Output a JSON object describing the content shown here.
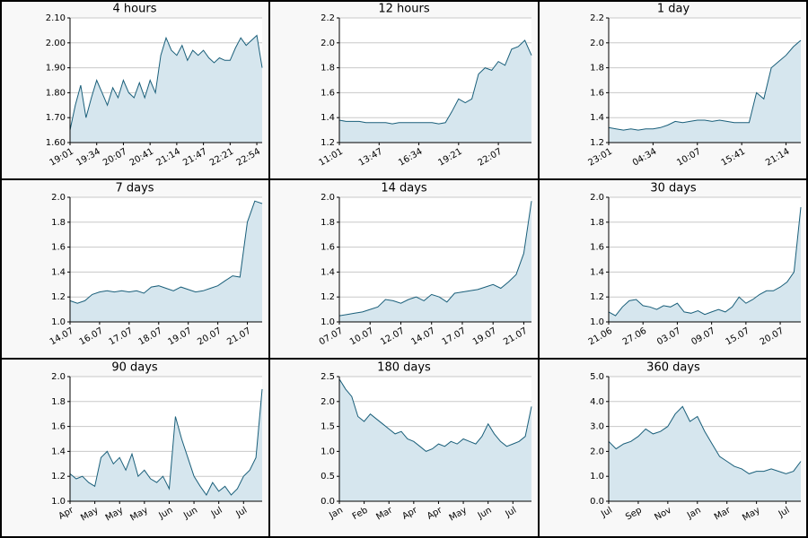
{
  "chart_data": [
    {
      "type": "line",
      "title": "4 hours",
      "color": "#1a5f7a",
      "fill": "#d6e6ee",
      "grid": true,
      "ylim": [
        1.6,
        2.1
      ],
      "yticks": [
        {
          "value": 1.6,
          "label": "1.60"
        },
        {
          "value": 1.7,
          "label": "1.70"
        },
        {
          "value": 1.8,
          "label": "1.80"
        },
        {
          "value": 1.9,
          "label": "1.90"
        },
        {
          "value": 2.0,
          "label": "2.00"
        },
        {
          "value": 2.1,
          "label": "2.10"
        }
      ],
      "categories": [
        "19:01",
        null,
        null,
        null,
        null,
        "19:34",
        null,
        null,
        null,
        null,
        "20:07",
        null,
        null,
        null,
        null,
        "20:41",
        null,
        null,
        null,
        null,
        "21:14",
        null,
        null,
        null,
        null,
        "21:47",
        null,
        null,
        null,
        null,
        "22:21",
        null,
        null,
        null,
        null,
        "22:54",
        null
      ],
      "values": [
        1.65,
        1.75,
        1.83,
        1.7,
        1.78,
        1.85,
        1.8,
        1.75,
        1.82,
        1.78,
        1.85,
        1.8,
        1.78,
        1.84,
        1.78,
        1.85,
        1.8,
        1.95,
        2.02,
        1.97,
        1.95,
        1.99,
        1.93,
        1.97,
        1.95,
        1.97,
        1.94,
        1.92,
        1.94,
        1.93,
        1.93,
        1.98,
        2.02,
        1.99,
        2.01,
        2.03,
        1.9
      ]
    },
    {
      "type": "line",
      "title": "12 hours",
      "color": "#1a5f7a",
      "fill": "#d6e6ee",
      "grid": true,
      "ylim": [
        1.2,
        2.2
      ],
      "yticks": [
        1.2,
        1.4,
        1.6,
        1.8,
        {
          "value": 2.0,
          "label": "2.0"
        },
        2.2
      ],
      "categories": [
        "11:01",
        null,
        null,
        null,
        null,
        null,
        "13:47",
        null,
        null,
        null,
        null,
        null,
        "16:34",
        null,
        null,
        null,
        null,
        null,
        "19:21",
        null,
        null,
        null,
        null,
        null,
        "22:07",
        null,
        null,
        null,
        null,
        null
      ],
      "values": [
        1.38,
        1.37,
        1.37,
        1.37,
        1.36,
        1.36,
        1.36,
        1.36,
        1.35,
        1.36,
        1.36,
        1.36,
        1.36,
        1.36,
        1.36,
        1.35,
        1.36,
        1.45,
        1.55,
        1.52,
        1.55,
        1.75,
        1.8,
        1.78,
        1.85,
        1.82,
        1.95,
        1.97,
        2.02,
        1.9
      ]
    },
    {
      "type": "line",
      "title": "1 day",
      "color": "#1a5f7a",
      "fill": "#d6e6ee",
      "grid": true,
      "ylim": [
        1.2,
        2.2
      ],
      "yticks": [
        1.2,
        1.4,
        1.6,
        1.8,
        {
          "value": 2.0,
          "label": "2.0"
        },
        2.2
      ],
      "categories": [
        "23:01",
        null,
        null,
        null,
        null,
        null,
        "04:34",
        null,
        null,
        null,
        null,
        null,
        "10:07",
        null,
        null,
        null,
        null,
        null,
        "15:41",
        null,
        null,
        null,
        null,
        null,
        "21:14",
        null,
        null
      ],
      "values": [
        1.32,
        1.31,
        1.3,
        1.31,
        1.3,
        1.31,
        1.31,
        1.32,
        1.34,
        1.37,
        1.36,
        1.37,
        1.38,
        1.38,
        1.37,
        1.38,
        1.37,
        1.36,
        1.36,
        1.36,
        1.6,
        1.55,
        1.8,
        1.85,
        1.9,
        1.97,
        2.02
      ]
    },
    {
      "type": "line",
      "title": "7 days",
      "color": "#1a5f7a",
      "fill": "#d6e6ee",
      "grid": true,
      "ylim": [
        1.0,
        2.0
      ],
      "yticks": [
        {
          "value": 1.0,
          "label": "1.0"
        },
        1.2,
        1.4,
        1.6,
        1.8,
        {
          "value": 2.0,
          "label": "2.0"
        }
      ],
      "categories": [
        "14.07",
        null,
        null,
        null,
        "16.07",
        null,
        null,
        null,
        "17.07",
        null,
        null,
        null,
        "18.07",
        null,
        null,
        null,
        "19.07",
        null,
        null,
        null,
        "20.07",
        null,
        null,
        null,
        "21.07",
        null,
        null
      ],
      "values": [
        1.17,
        1.15,
        1.17,
        1.22,
        1.24,
        1.25,
        1.24,
        1.25,
        1.24,
        1.25,
        1.23,
        1.28,
        1.29,
        1.27,
        1.25,
        1.28,
        1.26,
        1.24,
        1.25,
        1.27,
        1.29,
        1.33,
        1.37,
        1.36,
        1.8,
        1.97,
        1.95
      ]
    },
    {
      "type": "line",
      "title": "14 days",
      "color": "#1a5f7a",
      "fill": "#d6e6ee",
      "grid": true,
      "ylim": [
        1.0,
        2.0
      ],
      "yticks": [
        {
          "value": 1.0,
          "label": "1.0"
        },
        1.2,
        1.4,
        1.6,
        1.8,
        {
          "value": 2.0,
          "label": "2.0"
        }
      ],
      "categories": [
        "07.07",
        null,
        null,
        null,
        "10.07",
        null,
        null,
        null,
        "12.07",
        null,
        null,
        null,
        "14.07",
        null,
        null,
        null,
        "17.07",
        null,
        null,
        null,
        "19.07",
        null,
        null,
        null,
        "21.07",
        null
      ],
      "values": [
        1.05,
        1.06,
        1.07,
        1.08,
        1.1,
        1.12,
        1.18,
        1.17,
        1.15,
        1.18,
        1.2,
        1.17,
        1.22,
        1.2,
        1.16,
        1.23,
        1.24,
        1.25,
        1.26,
        1.28,
        1.3,
        1.27,
        1.32,
        1.38,
        1.55,
        1.97
      ]
    },
    {
      "type": "line",
      "title": "30 days",
      "color": "#1a5f7a",
      "fill": "#d6e6ee",
      "grid": true,
      "ylim": [
        1.0,
        2.0
      ],
      "yticks": [
        {
          "value": 1.0,
          "label": "1.0"
        },
        1.2,
        1.4,
        1.6,
        1.8,
        {
          "value": 2.0,
          "label": "2.0"
        }
      ],
      "categories": [
        "21.06",
        null,
        null,
        null,
        null,
        "27.06",
        null,
        null,
        null,
        null,
        "03.07",
        null,
        null,
        null,
        null,
        "09.07",
        null,
        null,
        null,
        null,
        "15.07",
        null,
        null,
        null,
        null,
        "20.07",
        null,
        null,
        null
      ],
      "values": [
        1.08,
        1.05,
        1.12,
        1.17,
        1.18,
        1.13,
        1.12,
        1.1,
        1.13,
        1.12,
        1.15,
        1.08,
        1.07,
        1.09,
        1.06,
        1.08,
        1.1,
        1.08,
        1.12,
        1.2,
        1.15,
        1.18,
        1.22,
        1.25,
        1.25,
        1.28,
        1.32,
        1.4,
        1.92
      ]
    },
    {
      "type": "line",
      "title": "90 days",
      "color": "#1a5f7a",
      "fill": "#d6e6ee",
      "grid": true,
      "ylim": [
        1.0,
        2.0
      ],
      "yticks": [
        {
          "value": 1.0,
          "label": "1.0"
        },
        1.2,
        1.4,
        1.6,
        1.8,
        {
          "value": 2.0,
          "label": "2.0"
        }
      ],
      "categories": [
        "Apr",
        null,
        null,
        null,
        "May",
        null,
        null,
        null,
        "May",
        null,
        null,
        null,
        "May",
        null,
        null,
        null,
        "Jun",
        null,
        null,
        null,
        "Jun",
        null,
        null,
        null,
        "Jul",
        null,
        null,
        null,
        "Jul",
        null,
        null,
        null
      ],
      "values": [
        1.22,
        1.18,
        1.2,
        1.15,
        1.12,
        1.35,
        1.4,
        1.3,
        1.35,
        1.25,
        1.38,
        1.2,
        1.25,
        1.18,
        1.15,
        1.2,
        1.1,
        1.68,
        1.5,
        1.35,
        1.2,
        1.12,
        1.05,
        1.15,
        1.08,
        1.12,
        1.05,
        1.1,
        1.2,
        1.25,
        1.35,
        1.9
      ]
    },
    {
      "type": "line",
      "title": "180 days",
      "color": "#1a5f7a",
      "fill": "#d6e6ee",
      "grid": true,
      "ylim": [
        0,
        2.5
      ],
      "yticks": [
        {
          "value": 0,
          "label": "0.0"
        },
        0.5,
        {
          "value": 1.0,
          "label": "1.0"
        },
        1.5,
        {
          "value": 2.0,
          "label": "2.0"
        },
        2.5
      ],
      "categories": [
        "Jan",
        null,
        null,
        null,
        "Feb",
        null,
        null,
        null,
        "Mar",
        null,
        null,
        null,
        "Apr",
        null,
        null,
        null,
        "Apr",
        null,
        null,
        null,
        "May",
        null,
        null,
        null,
        "Jun",
        null,
        null,
        null,
        "Jul",
        null,
        null,
        null
      ],
      "values": [
        2.45,
        2.25,
        2.1,
        1.7,
        1.6,
        1.75,
        1.65,
        1.55,
        1.45,
        1.35,
        1.4,
        1.25,
        1.2,
        1.1,
        1.0,
        1.05,
        1.15,
        1.1,
        1.2,
        1.15,
        1.25,
        1.2,
        1.15,
        1.3,
        1.55,
        1.35,
        1.2,
        1.1,
        1.15,
        1.2,
        1.3,
        1.9
      ]
    },
    {
      "type": "line",
      "title": "360 days",
      "color": "#1a5f7a",
      "fill": "#d6e6ee",
      "grid": true,
      "ylim": [
        0,
        5
      ],
      "yticks": [
        {
          "value": 0,
          "label": "0.0"
        },
        {
          "value": 1,
          "label": "1.0"
        },
        {
          "value": 2,
          "label": "2.0"
        },
        {
          "value": 3,
          "label": "3.0"
        },
        {
          "value": 4,
          "label": "4.0"
        },
        {
          "value": 5,
          "label": "5.0"
        }
      ],
      "categories": [
        "Jul",
        null,
        null,
        null,
        "Sep",
        null,
        null,
        null,
        "Nov",
        null,
        null,
        null,
        "Jan",
        null,
        null,
        null,
        "Mar",
        null,
        null,
        null,
        "May",
        null,
        null,
        null,
        "Jul",
        null,
        null
      ],
      "values": [
        2.4,
        2.1,
        2.3,
        2.4,
        2.6,
        2.9,
        2.7,
        2.8,
        3.0,
        3.5,
        3.8,
        3.2,
        3.4,
        2.8,
        2.3,
        1.8,
        1.6,
        1.4,
        1.3,
        1.1,
        1.2,
        1.2,
        1.3,
        1.2,
        1.1,
        1.2,
        1.6
      ]
    }
  ]
}
